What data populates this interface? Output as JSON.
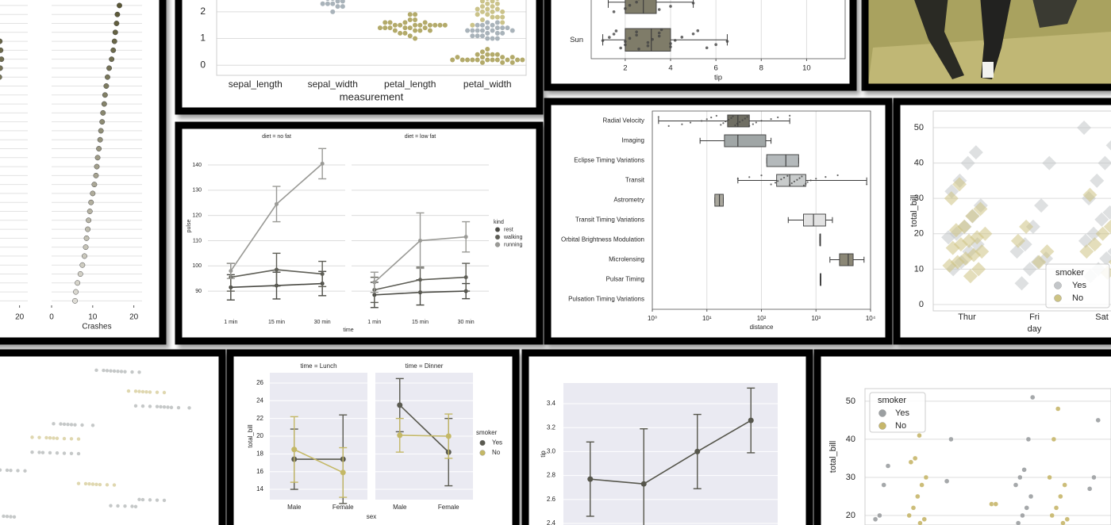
{
  "chart_data": [
    {
      "type": "dot",
      "palette": [
        "#55522f",
        "#dedcd5"
      ],
      "panels": [
        {
          "xlim": [
            0,
            22
          ],
          "xticks": [
            20
          ],
          "values": [
            12,
            12.5,
            13,
            13.5,
            14,
            15.2,
            15.4,
            15.6,
            15.3,
            15.1,
            14.2,
            13,
            12.5,
            12,
            11.5,
            11,
            10.5,
            10,
            9.5,
            9,
            8.7,
            8.5,
            8,
            7.6,
            7.2,
            7,
            6.8,
            6.5,
            6.2,
            6,
            5.5,
            5,
            4.6,
            4.2,
            4
          ]
        },
        {
          "xlabel": "Crashes",
          "xlim": [
            0,
            22
          ],
          "xticks": [
            0,
            10,
            20
          ],
          "values": [
            17,
            16.5,
            16,
            15.8,
            15.5,
            15.3,
            15,
            14.6,
            14,
            13.6,
            13.3,
            13,
            12.8,
            12.5,
            12.3,
            12,
            11.8,
            11.5,
            11.2,
            11,
            10.8,
            10.4,
            10,
            9.6,
            9.3,
            9,
            8.8,
            8.5,
            8.3,
            8,
            7.5,
            7,
            6.3,
            5.9,
            5.7
          ]
        }
      ]
    },
    {
      "type": "swarm",
      "categories": [
        "sepal_length",
        "sepal_width",
        "petal_length",
        "petal_width"
      ],
      "xlabel": "measurement",
      "ylim": [
        -0.38,
        2.74
      ],
      "yticks": [
        0,
        1,
        2
      ],
      "grid": true,
      "frame": true,
      "series": [
        {
          "color": "#b3aa6a",
          "values": [
            [],
            [],
            [
              1.4,
              1.3,
              1.5,
              1.7,
              1.4,
              1.5,
              1.6,
              1.1,
              1.2,
              1.5,
              1.3,
              1.4,
              1.7,
              1.5,
              1.0,
              1.9,
              1.6,
              1.5,
              1.4,
              1.6,
              1.5,
              1.2,
              1.3,
              1.4,
              1.5,
              1.6,
              1.9,
              1.4,
              1.5,
              1.3
            ],
            [
              0.2,
              0.2,
              0.4,
              0.3,
              0.2,
              0.1,
              0.2,
              0.1,
              0.4,
              0.3,
              0.2,
              0.5,
              0.2,
              0.4,
              0.2,
              0.1,
              0.2,
              0.3,
              0.6,
              0.2,
              0.3,
              0.2,
              0.4,
              0.2
            ]
          ]
        },
        {
          "color": "#a9b3ba",
          "values": [
            [],
            [
              2.3,
              2.2,
              2.4,
              2.3,
              2.0,
              2.2,
              2.4,
              2.5,
              2.5,
              2.3
            ],
            [],
            [
              1.4,
              1.5,
              1.3,
              1.6,
              1.0,
              1.3,
              1.4,
              1.0,
              1.5,
              1.1,
              1.3,
              1.2,
              1.4,
              1.5,
              1.0,
              1.1,
              1.2,
              1.6,
              1.3,
              1.2,
              1.4,
              1.3,
              1.1,
              1.3
            ]
          ]
        },
        {
          "color": "#cbc38a",
          "values": [
            [],
            [],
            [],
            [
              2.5,
              1.9,
              2.1,
              1.8,
              2.2,
              1.7,
              2.0,
              2.4,
              2.3,
              1.8,
              2.2,
              1.5,
              2.0,
              2.1,
              1.6,
              1.9,
              2.3,
              2.4,
              1.8,
              2.1,
              2.5,
              2.0
            ]
          ]
        }
      ]
    },
    {
      "type": "box",
      "categories": [
        null,
        "Sun"
      ],
      "xlabel": "tip",
      "xlim": [
        0.5,
        11.7
      ],
      "xticks": [
        2,
        4,
        6,
        8,
        10
      ],
      "grid": true,
      "frame": true,
      "color": "#7f7c69",
      "boxes": [
        [
          1.25,
          2.0,
          2.8,
          3.37,
          5.0
        ],
        [
          1.01,
          2.0,
          3.15,
          4.0,
          6.5
        ]
      ],
      "points": [
        [
          1.25,
          1.5,
          2.0,
          2.2,
          2.5,
          2.6,
          3.0,
          3.2,
          3.5,
          4.0,
          5.0
        ],
        [
          1.01,
          1.3,
          1.5,
          1.6,
          1.8,
          2.0,
          2.0,
          2.2,
          2.5,
          2.5,
          2.6,
          3.0,
          3.0,
          3.2,
          3.5,
          3.5,
          3.6,
          4.0,
          4.0,
          4.2,
          4.5,
          5.0,
          5.2,
          5.6,
          6.0,
          6.5
        ]
      ]
    },
    {
      "type": "point",
      "ylabel": "pulse",
      "xlabel": "time",
      "categories": [
        "1 min",
        "15 min",
        "30 min"
      ],
      "ylim": [
        82.8,
        148.8
      ],
      "yticks": [
        90,
        100,
        110,
        120,
        130,
        140
      ],
      "grid": true,
      "legend_title": "kind",
      "series": [
        {
          "name": "rest",
          "color": "#4a4a44"
        },
        {
          "name": "walking",
          "color": "#5e5e56"
        },
        {
          "name": "running",
          "color": "#9a9a96"
        }
      ],
      "facets": [
        {
          "title": "diet = no fat",
          "values": [
            [
              91.5,
              92.2,
              93
            ],
            [
              95.5,
              98.5,
              96.8
            ],
            [
              98,
              124.5,
              140.5
            ]
          ],
          "errors": [
            [
              5,
              5.3,
              4.8
            ],
            [
              5.5,
              6.5,
              5
            ],
            [
              3,
              7,
              6
            ]
          ]
        },
        {
          "title": "diet = low fat",
          "values": [
            [
              88.5,
              89.5,
              90
            ],
            [
              90.5,
              94.5,
              95.5
            ],
            [
              93.5,
              110,
              111.5
            ]
          ],
          "errors": [
            [
              5,
              5,
              3
            ],
            [
              5,
              5,
              5.5
            ],
            [
              4,
              11,
              6
            ]
          ]
        }
      ]
    },
    {
      "type": "box",
      "xlabel": "distance",
      "log": true,
      "grid": true,
      "frame": true,
      "xlim": [
        1,
        10000
      ],
      "xticks": [
        {
          "value": 1,
          "label": "10⁰"
        },
        {
          "value": 10,
          "label": "10¹"
        },
        {
          "value": 100,
          "label": "10²"
        },
        {
          "value": 1000,
          "label": "10³"
        },
        {
          "value": 10000,
          "label": "10⁴"
        }
      ],
      "categories": [
        "Radial Velocity",
        "Imaging",
        "Eclipse Timing Variations",
        "Transit",
        "Astrometry",
        "Transit Timing Variations",
        "Orbital Brightness Modulation",
        "Microlensing",
        "Pulsar Timing",
        "Pulsation Timing Variations"
      ],
      "colors": [
        "#6f6e63",
        "#a0a6a6",
        "#b4b9bb",
        "#c8cbcb",
        "#a9a79d",
        "#e2e2e2",
        "#d0d0cc",
        "#8b8776",
        "#c0c0bc",
        "#c0c0bc"
      ],
      "boxes": [
        [
          1.3,
          24,
          37,
          60,
          330
        ],
        [
          7.5,
          21,
          37,
          120,
          150
        ],
        [
          125,
          125,
          280,
          480,
          480
        ],
        [
          37,
          190,
          330,
          650,
          8500
        ],
        [
          14,
          14,
          17,
          20,
          20
        ],
        [
          310,
          590,
          900,
          1500,
          2000
        ],
        [
          1180,
          1180,
          1180,
          1180,
          1180
        ],
        [
          1800,
          2700,
          3900,
          4800,
          7600
        ],
        [
          1200,
          1200,
          1200,
          1200,
          1200
        ],
        null
      ],
      "points": [
        [
          1.3,
          2,
          3.5,
          5,
          8,
          10,
          12,
          15,
          18,
          20,
          22,
          25,
          28,
          30,
          33,
          36,
          40,
          45,
          50,
          55,
          60,
          70,
          80,
          100,
          150,
          200,
          330
        ],
        [],
        [],
        [
          37,
          60,
          100,
          150,
          180,
          200,
          230,
          260,
          300,
          330,
          360,
          400,
          450,
          500,
          550,
          600,
          650,
          700,
          800,
          1000,
          1500,
          2500,
          8500
        ],
        [],
        [],
        [],
        [],
        [],
        []
      ]
    },
    {
      "type": "strip",
      "categories": [
        "Thur",
        "Fri",
        "Sat"
      ],
      "ylabel": "total_bill",
      "xlabel": "day",
      "ylim": [
        -1.8,
        54.7
      ],
      "yticks": [
        0,
        10,
        20,
        30,
        40,
        50
      ],
      "grid": true,
      "frame": true,
      "marker": "diamond",
      "alpha": 0.55,
      "legend_title": "smoker",
      "series": [
        {
          "name": "Yes",
          "color": "#c3c6c9",
          "values": [
            [
              10,
              12,
              15,
              17,
              19,
              20,
              22,
              25,
              28,
              32,
              35,
              40,
              43
            ],
            [
              6,
              10,
              12,
              13,
              15,
              17,
              22,
              28,
              40
            ],
            [
              8,
              10,
              13,
              15,
              18,
              20,
              24,
              26,
              28,
              30,
              35,
              40,
              45,
              50
            ]
          ]
        },
        {
          "name": "No",
          "color": "#cdc384",
          "values": [
            [
              8,
              10,
              11,
              12,
              13,
              14,
              15,
              16,
              17,
              18,
              19,
              20,
              21,
              22,
              25,
              27,
              30,
              34
            ],
            [
              12,
              15,
              18,
              22
            ],
            [
              9,
              12,
              15,
              17,
              20,
              22,
              25,
              31
            ]
          ]
        }
      ]
    },
    {
      "type": "hstrip",
      "categories": [
        null,
        null,
        null,
        null,
        null,
        null,
        null,
        null,
        null,
        null
      ],
      "xlim": [
        0,
        60
      ],
      "alpha": 0.6,
      "series": [
        {
          "color": "#9fa4a3",
          "values": [
            [
              27,
              29,
              30,
              31,
              32,
              33,
              34,
              35,
              37,
              39
            ],
            [],
            [
              38,
              40,
              42,
              44,
              45,
              46,
              47,
              48,
              50,
              53
            ],
            [
              15,
              17,
              18,
              19,
              20,
              21,
              23,
              26
            ],
            [],
            [
              9,
              11,
              12,
              14,
              16,
              18,
              20,
              22
            ],
            [
              0,
              2,
              3,
              5,
              7
            ],
            [],
            [
              31,
              33,
              35,
              37,
              38,
              39,
              40,
              42,
              44,
              46
            ],
            [
              1,
              2,
              3,
              4
            ]
          ]
        },
        {
          "color": "#c9bd7a",
          "values": [
            [],
            [
              36,
              38,
              39,
              40,
              41,
              42,
              44,
              46
            ],
            [],
            [],
            [
              9,
              11,
              13,
              14,
              15,
              16,
              18,
              20,
              22
            ],
            [],
            [],
            [
              22,
              24,
              25,
              26,
              27,
              28,
              30,
              32
            ],
            [],
            []
          ]
        }
      ]
    },
    {
      "type": "point",
      "ylabel": "total_bill",
      "xlabel": "sex",
      "categories": [
        "Male",
        "Female"
      ],
      "ylim": [
        12.84,
        27.16
      ],
      "yticks": [
        14,
        16,
        18,
        20,
        22,
        24,
        26
      ],
      "grid": true,
      "background": "#eaeaf2",
      "legend_title": "smoker",
      "series": [
        {
          "name": "Yes",
          "color": "#5a5a50"
        },
        {
          "name": "No",
          "color": "#c4b866"
        }
      ],
      "facets": [
        {
          "title": "time = Lunch",
          "values": [
            [
              17.4,
              17.4
            ],
            [
              18.5,
              15.9
            ]
          ],
          "errors": [
            [
              3.4,
              5
            ],
            [
              3.7,
              2.8
            ]
          ]
        },
        {
          "title": "time = Dinner",
          "values": [
            [
              23.5,
              18.2
            ],
            [
              20.1,
              20.0
            ]
          ],
          "errors": [
            [
              3,
              3.8
            ],
            [
              1.9,
              2.5
            ]
          ]
        }
      ]
    },
    {
      "type": "point",
      "ylabel": "tip",
      "categories": [
        null,
        null,
        null,
        null
      ],
      "ylim": [
        2.387,
        3.572
      ],
      "yticks": [
        2.4,
        2.6,
        2.8,
        {
          "value": 3,
          "label": "3.0"
        },
        3.2,
        3.4
      ],
      "grid": true,
      "background": "#eaeaf2",
      "series": [
        {
          "color": "#56564c",
          "values": [
            2.77,
            2.73,
            3.0,
            3.26
          ],
          "errors": [
            0.31,
            0.46,
            0.31,
            0.27
          ]
        }
      ]
    },
    {
      "type": "strip",
      "categories": [
        null,
        null,
        null,
        null,
        null,
        null,
        null
      ],
      "ylabel": "total_bill",
      "ylim": [
        17.5,
        53.3
      ],
      "yticks": [
        20,
        30,
        40,
        50
      ],
      "grid": true,
      "frame": true,
      "marker": "circle",
      "alpha": 0.9,
      "legend_title": "smoker",
      "series": [
        {
          "name": "Yes",
          "color": "#9b9fa1",
          "values": [
            [
              19,
              20,
              28,
              33
            ],
            [],
            [
              29,
              40
            ],
            [],
            [
              18,
              20,
              22,
              25,
              28,
              30,
              32,
              40,
              51
            ],
            [],
            [
              27,
              30,
              45
            ]
          ]
        },
        {
          "name": "No",
          "color": "#c6b66a",
          "values": [
            [],
            [
              18,
              19,
              20,
              22,
              25,
              28,
              30,
              34,
              35,
              41
            ],
            [],
            [
              23,
              23
            ],
            [],
            [
              18,
              19,
              20,
              22,
              25,
              28,
              30,
              40,
              48
            ],
            []
          ]
        }
      ]
    }
  ]
}
